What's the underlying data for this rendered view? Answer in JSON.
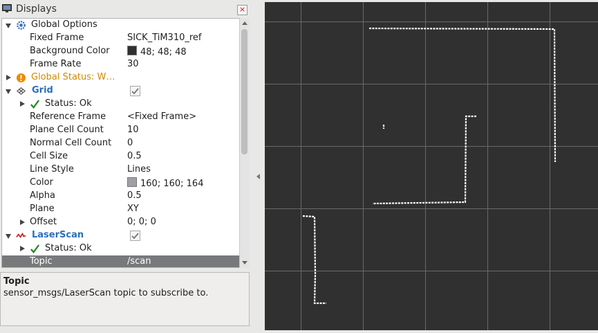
{
  "panel": {
    "title": "Displays",
    "close_label": "×"
  },
  "tree": {
    "rows": [
      {
        "name": "Global Options",
        "value": ""
      },
      {
        "name": "Fixed Frame",
        "value": "SICK_TiM310_ref"
      },
      {
        "name": "Background Color",
        "value": "48; 48; 48",
        "swatch": "#303030"
      },
      {
        "name": "Frame Rate",
        "value": "30"
      },
      {
        "name": "Global Status: W…",
        "value": ""
      },
      {
        "name": "Grid",
        "value": "",
        "checked": true
      },
      {
        "name": "Status: Ok",
        "value": ""
      },
      {
        "name": "Reference Frame",
        "value": "<Fixed Frame>"
      },
      {
        "name": "Plane Cell Count",
        "value": "10"
      },
      {
        "name": "Normal Cell Count",
        "value": "0"
      },
      {
        "name": "Cell Size",
        "value": "0.5"
      },
      {
        "name": "Line Style",
        "value": "Lines"
      },
      {
        "name": "Color",
        "value": "160; 160; 164",
        "swatch": "#a0a0a4"
      },
      {
        "name": "Alpha",
        "value": "0.5"
      },
      {
        "name": "Plane",
        "value": "XY"
      },
      {
        "name": "Offset",
        "value": "0; 0; 0"
      },
      {
        "name": "LaserScan",
        "value": "",
        "checked": true
      },
      {
        "name": "Status: Ok",
        "value": ""
      },
      {
        "name": "Topic",
        "value": "/scan",
        "selected": true
      }
    ]
  },
  "help": {
    "title": "Topic",
    "text": "sensor_msgs/LaserScan topic to subscribe to."
  },
  "colors": {
    "viewport_background": "#303030",
    "grid_line": "#6a6a6b",
    "scan_points": "#ffffff",
    "status_ok": "#1f8a1f",
    "status_warn": "#f08a00",
    "link_blue": "#2a6fbf"
  }
}
